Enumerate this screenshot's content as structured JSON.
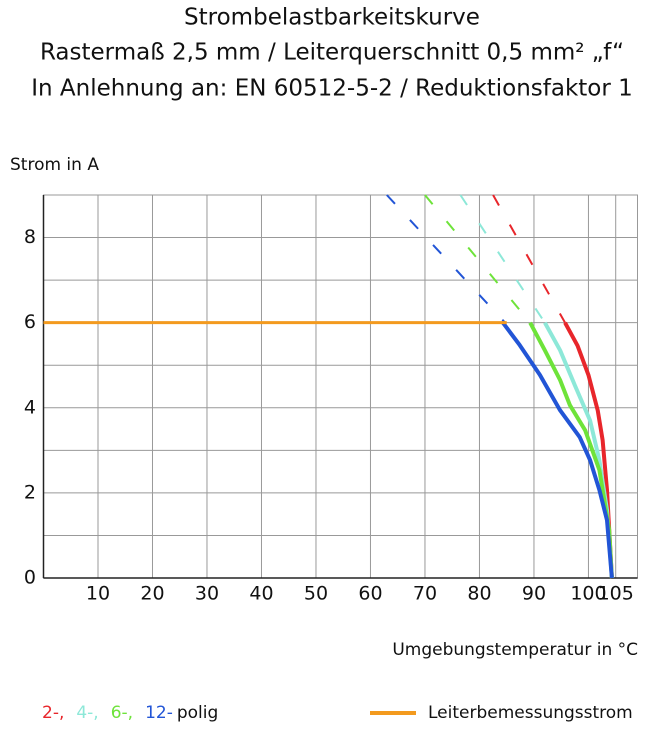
{
  "chart_data": {
    "type": "line",
    "title": [
      "Strombelastbarkeitskurve",
      "Rastermaß 2,5 mm / Leiterquerschnitt 0,5 mm² „f“",
      "In Anlehnung an: EN 60512-5-2 / Reduktionsfaktor 1"
    ],
    "y_label": "Strom in A",
    "x_label": "Umgebungstemperatur in °C",
    "xlim": [
      0,
      109
    ],
    "ylim": [
      0,
      9
    ],
    "xticks": [
      10,
      20,
      30,
      40,
      50,
      60,
      70,
      80,
      90,
      100,
      105
    ],
    "yticks": [
      0,
      2,
      4,
      6,
      8
    ],
    "minor_yticks": [
      1,
      3,
      5,
      7,
      9
    ],
    "grid": true,
    "legend_suffix": "polig",
    "series": [
      {
        "name": "2-,",
        "color": "#e8262b",
        "x": [
          95.7,
          98,
          100,
          101.7,
          102.6,
          103.4,
          104.3
        ],
        "values": [
          6,
          5.46,
          4.77,
          3.94,
          3.24,
          2.07,
          0
        ],
        "extension": {
          "x": [
            82.5,
            95.7
          ],
          "values": [
            9,
            6
          ]
        }
      },
      {
        "name": "4-,",
        "color": "#8de8d8",
        "x": [
          92,
          94.8,
          97.5,
          100.3,
          102,
          103.4,
          104.3
        ],
        "values": [
          6,
          5.35,
          4.53,
          3.7,
          2.77,
          1.6,
          0
        ],
        "extension": {
          "x": [
            76.5,
            92
          ],
          "values": [
            9,
            6
          ]
        }
      },
      {
        "name": "6-,",
        "color": "#6ee33a",
        "x": [
          89.3,
          92,
          94.8,
          96.6,
          99.4,
          102,
          103.8,
          104.3
        ],
        "values": [
          6,
          5.35,
          4.65,
          4.06,
          3.47,
          2.54,
          1.13,
          0
        ],
        "extension": {
          "x": [
            70,
            89.3
          ],
          "values": [
            9,
            6
          ]
        }
      },
      {
        "name": "12-",
        "color": "#2255d6",
        "x": [
          84.3,
          87.4,
          91.1,
          94.8,
          98.4,
          100.3,
          102,
          103.4,
          104.3
        ],
        "values": [
          6,
          5.47,
          4.77,
          3.94,
          3.31,
          2.77,
          2.07,
          1.36,
          0
        ],
        "extension": {
          "x": [
            63,
            84.7
          ],
          "values": [
            9,
            6
          ]
        }
      },
      {
        "name": "Leiterbemessungsstrom",
        "color": "#f39a1e",
        "x": [
          0,
          85
        ],
        "values": [
          6,
          6
        ]
      }
    ]
  }
}
